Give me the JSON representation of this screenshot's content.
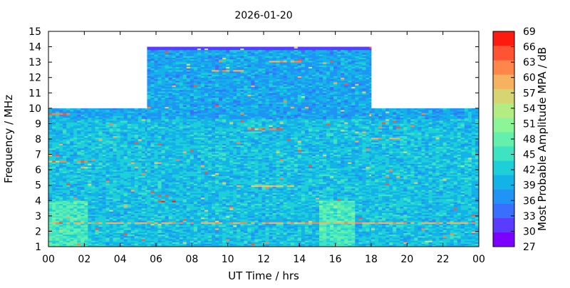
{
  "chart_data": {
    "type": "heatmap",
    "title": "2026-01-20",
    "xlabel": "UT Time / hrs",
    "ylabel": "Frequency / MHz",
    "colorbar_label": "Most Probable Amplitude MPA / dB",
    "xlim": [
      0,
      24
    ],
    "ylim": [
      1,
      15
    ],
    "x_ticks": [
      "00",
      "02",
      "04",
      "06",
      "08",
      "10",
      "12",
      "14",
      "16",
      "18",
      "20",
      "22",
      "00"
    ],
    "y_ticks": [
      "1",
      "2",
      "3",
      "4",
      "5",
      "6",
      "7",
      "8",
      "9",
      "10",
      "11",
      "12",
      "13",
      "14",
      "15"
    ],
    "colorbar": {
      "min": 27,
      "max": 69,
      "step": 3,
      "ticks": [
        "27",
        "30",
        "33",
        "36",
        "39",
        "42",
        "45",
        "48",
        "51",
        "54",
        "57",
        "60",
        "63",
        "66",
        "69"
      ],
      "colors": [
        "#7b00ff",
        "#5a3cff",
        "#3a6eff",
        "#1f94f5",
        "#13b3e8",
        "#1ccfd8",
        "#3ee3c4",
        "#63f0ac",
        "#8cf596",
        "#b2ec83",
        "#d6d572",
        "#f6b260",
        "#fe864b",
        "#ff5433",
        "#ff1a10"
      ]
    },
    "coverage": [
      {
        "x": [
          0,
          5.5
        ],
        "y": [
          1,
          10
        ]
      },
      {
        "x": [
          5.5,
          18
        ],
        "y": [
          1,
          14
        ]
      },
      {
        "x": [
          18,
          24
        ],
        "y": [
          1,
          10
        ]
      }
    ],
    "typical_level_db": 41,
    "features": [
      {
        "freq_mhz": 2.5,
        "x": [
          0,
          24
        ],
        "level_db": 60
      },
      {
        "freq_mhz": 9.6,
        "x": [
          0,
          1.2
        ],
        "level_db": 63
      },
      {
        "freq_mhz": 3.9,
        "x": [
          6.1,
          7.0
        ],
        "level_db": 66
      },
      {
        "freq_mhz": 4.3,
        "x": [
          6.2,
          6.6
        ],
        "level_db": 66
      },
      {
        "freq_mhz": 8.6,
        "x": [
          11,
          13
        ],
        "level_db": 63
      },
      {
        "freq_mhz": 12.4,
        "x": [
          9,
          11
        ],
        "level_db": 60
      },
      {
        "freq_mhz": 13.0,
        "x": [
          12,
          14
        ],
        "level_db": 60
      },
      {
        "freq_mhz": 6.5,
        "x": [
          0,
          2
        ],
        "level_db": 63
      },
      {
        "freq_mhz": 8.0,
        "x": [
          18,
          19.5
        ],
        "level_db": 60
      },
      {
        "freq_mhz": 4.9,
        "x": [
          10,
          13.5
        ],
        "level_db": 57
      }
    ]
  }
}
